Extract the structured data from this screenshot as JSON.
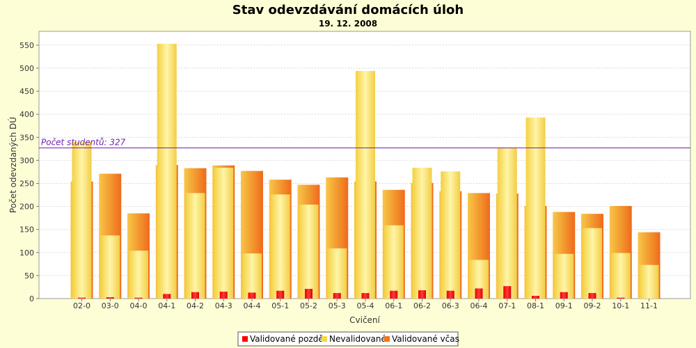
{
  "chart_data": {
    "type": "bar",
    "title": "Stav odevzdávání domácích úloh",
    "subtitle": "19. 12. 2008",
    "xlabel": "Cvičení",
    "ylabel": "Počet odevzdaných DÚ",
    "ylim": [
      0,
      580
    ],
    "yticks": [
      0,
      50,
      100,
      150,
      200,
      250,
      300,
      350,
      400,
      450,
      500,
      550
    ],
    "grid": true,
    "legend_position": "bottom",
    "categories": [
      "02-0",
      "03-0",
      "04-0",
      "04-1",
      "04-2",
      "04-3",
      "04-4",
      "05-1",
      "05-2",
      "05-3",
      "05-4",
      "06-1",
      "06-2",
      "06-3",
      "06-4",
      "07-1",
      "08-1",
      "09-1",
      "09-2",
      "10-1",
      "11-1"
    ],
    "series": [
      {
        "name": "Validované pozdě",
        "color": "#ff0000",
        "values": [
          2,
          3,
          2,
          10,
          14,
          15,
          13,
          17,
          21,
          12,
          12,
          17,
          18,
          17,
          22,
          27,
          6,
          14,
          12,
          2,
          0
        ]
      },
      {
        "name": "Nevalidované",
        "color": "#f5d84a",
        "values": [
          340,
          137,
          104,
          553,
          229,
          284,
          98,
          226,
          204,
          109,
          494,
          159,
          284,
          276,
          84,
          327,
          393,
          97,
          153,
          99,
          73
        ]
      },
      {
        "name": "Validované včas",
        "color": "#f07820",
        "values": [
          254,
          271,
          185,
          290,
          283,
          289,
          277,
          258,
          247,
          263,
          254,
          236,
          251,
          233,
          229,
          228,
          201,
          188,
          184,
          201,
          144
        ]
      }
    ],
    "markers": [
      {
        "value": 327,
        "label": "Počet studentů: 327",
        "color": "#7020b0"
      }
    ]
  }
}
